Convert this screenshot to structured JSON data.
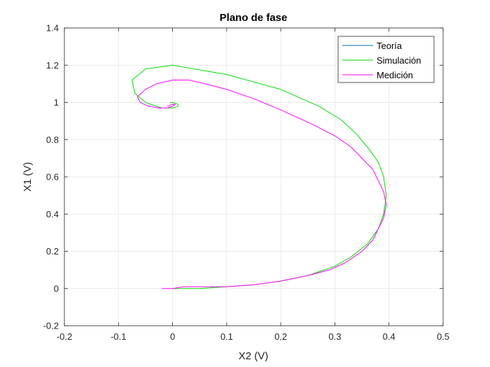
{
  "chart_data": {
    "type": "line",
    "title": "Plano de fase",
    "xlabel": "X2 (V)",
    "ylabel": "X1 (V)",
    "xlim": [
      -0.2,
      0.5
    ],
    "ylim": [
      -0.2,
      1.4
    ],
    "xticks": [
      -0.2,
      -0.1,
      0,
      0.1,
      0.2,
      0.3,
      0.4,
      0.5
    ],
    "yticks": [
      -0.2,
      0,
      0.2,
      0.4,
      0.6,
      0.8,
      1,
      1.2,
      1.4
    ],
    "xtick_labels": [
      "-0.2",
      "-0.1",
      "0",
      "0.1",
      "0.2",
      "0.3",
      "0.4",
      "0.5"
    ],
    "ytick_labels": [
      "-0.2",
      "0",
      "0.2",
      "0.4",
      "0.6",
      "0.8",
      "1",
      "1.2",
      "1.4"
    ],
    "grid": true,
    "legend_position": "top-right",
    "series": [
      {
        "name": "Teoría",
        "color": "#0072BD",
        "x": [],
        "y": []
      },
      {
        "name": "Simulación",
        "color": "#00DD00",
        "x": [
          0.0,
          0.05,
          0.1,
          0.15,
          0.2,
          0.25,
          0.3,
          0.33,
          0.36,
          0.38,
          0.39,
          0.395,
          0.39,
          0.38,
          0.36,
          0.34,
          0.31,
          0.27,
          0.2,
          0.1,
          0.0,
          -0.05,
          -0.075,
          -0.07,
          -0.05,
          -0.02,
          0.0,
          0.01,
          0.01,
          0.0,
          -0.005
        ],
        "y": [
          0.0,
          0.0,
          0.01,
          0.02,
          0.04,
          0.07,
          0.12,
          0.17,
          0.24,
          0.32,
          0.4,
          0.5,
          0.6,
          0.68,
          0.76,
          0.83,
          0.91,
          0.98,
          1.07,
          1.15,
          1.2,
          1.18,
          1.12,
          1.05,
          1.0,
          0.97,
          0.97,
          0.98,
          0.99,
          1.0,
          1.0
        ]
      },
      {
        "name": "Medición",
        "color": "#FF00FF",
        "x": [
          -0.02,
          -0.01,
          0.0,
          0.02,
          0.05,
          0.1,
          0.15,
          0.2,
          0.25,
          0.29,
          0.32,
          0.35,
          0.37,
          0.38,
          0.39,
          0.395,
          0.39,
          0.38,
          0.37,
          0.35,
          0.33,
          0.3,
          0.26,
          0.2,
          0.15,
          0.1,
          0.06,
          0.03,
          0.0,
          -0.03,
          -0.05,
          -0.065,
          -0.06,
          -0.045,
          -0.025,
          -0.01,
          0.0,
          0.005,
          0.0,
          -0.01
        ],
        "y": [
          0.0,
          0.0,
          0.0,
          0.01,
          0.01,
          0.01,
          0.02,
          0.04,
          0.07,
          0.1,
          0.14,
          0.2,
          0.26,
          0.32,
          0.38,
          0.45,
          0.52,
          0.58,
          0.64,
          0.7,
          0.76,
          0.82,
          0.88,
          0.96,
          1.02,
          1.07,
          1.1,
          1.12,
          1.12,
          1.1,
          1.07,
          1.03,
          1.0,
          0.98,
          0.97,
          0.97,
          0.98,
          0.99,
          0.99,
          0.98
        ]
      }
    ]
  }
}
